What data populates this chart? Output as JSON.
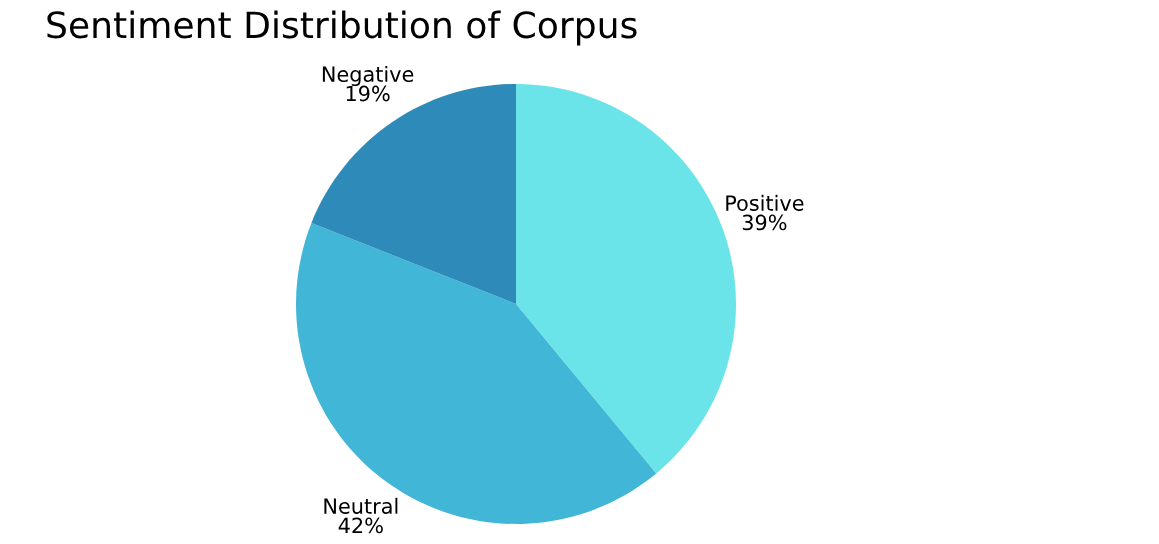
{
  "chart_data": {
    "type": "pie",
    "title": "Sentiment Distribution of Corpus",
    "categories": [
      "Positive",
      "Neutral",
      "Negative"
    ],
    "values": [
      39,
      42,
      19
    ],
    "value_labels": [
      "39%",
      "42%",
      "19%"
    ],
    "colors": [
      "#6ae4e8",
      "#42b6d6",
      "#2d8ab9"
    ],
    "legend": false
  }
}
